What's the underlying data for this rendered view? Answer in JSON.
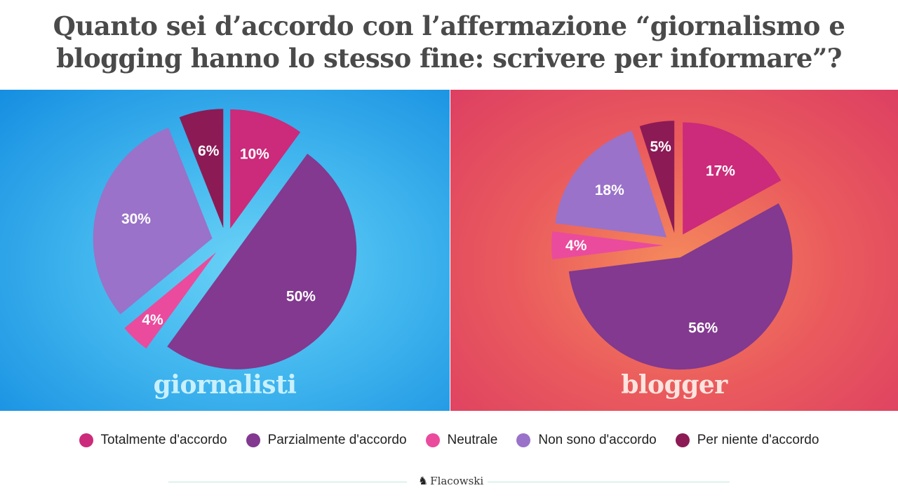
{
  "title_line1": "Quanto sei d’accordo con l’affermazione “giornalismo e",
  "title_line2": "blogging hanno lo stesso fine: scrivere per informare”?",
  "brand": {
    "name": "Flacowski",
    "icon": "horse-chess-icon"
  },
  "colors": {
    "Totalmente d'accordo": "#cc2a7a",
    "Parzialmente d'accordo": "#82398f",
    "Neutrale": "#ea4b9d",
    "Non sono d'accordo": "#9a72c9",
    "Per niente d'accordo": "#8c1a55"
  },
  "chart_data": [
    {
      "type": "pie",
      "title": "giornalisti",
      "categories": [
        "Totalmente d'accordo",
        "Parzialmente d'accordo",
        "Neutrale",
        "Non sono d'accordo",
        "Per niente d'accordo"
      ],
      "values": [
        10,
        50,
        4,
        30,
        6
      ],
      "labels": [
        "10%",
        "50%",
        "4%",
        "30%",
        "6%"
      ],
      "exploded": true,
      "legend": "bottom"
    },
    {
      "type": "pie",
      "title": "blogger",
      "categories": [
        "Totalmente d'accordo",
        "Parzialmente d'accordo",
        "Neutrale",
        "Non sono d'accordo",
        "Per niente d'accordo"
      ],
      "values": [
        17,
        56,
        4,
        18,
        5
      ],
      "labels": [
        "17%",
        "56%",
        "4%",
        "18%",
        "5%"
      ],
      "exploded": true,
      "legend": "bottom"
    }
  ],
  "legend": [
    {
      "label": "Totalmente d'accordo"
    },
    {
      "label": "Parzialmente d'accordo"
    },
    {
      "label": "Neutrale"
    },
    {
      "label": "Non sono d'accordo"
    },
    {
      "label": "Per niente d'accordo"
    }
  ]
}
